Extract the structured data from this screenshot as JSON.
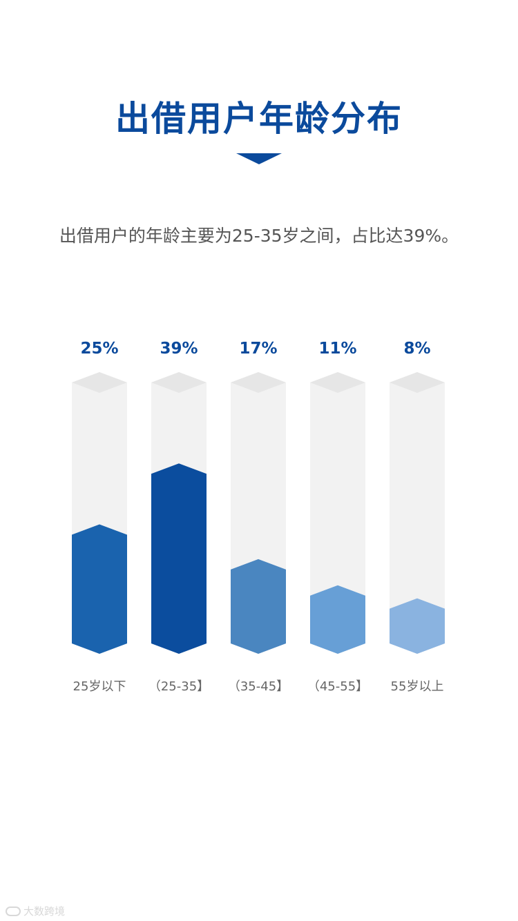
{
  "title": "出借用户年龄分布",
  "description": "出借用户的年龄主要为25-35岁之间，占比达39%。",
  "watermark": "大数跨境",
  "colors": {
    "title": "#0b4a9c",
    "track": "#f2f2f2",
    "track_cap": "#e6e6e6",
    "label_text": "#666666",
    "bars": [
      "#1a63ae",
      "#0b4d9e",
      "#4a86c0",
      "#679fd6",
      "#8ab3e0"
    ]
  },
  "chart_data": {
    "type": "bar",
    "categories": [
      "25岁以下",
      "（25-35】",
      "（35-45】",
      "（45-55】",
      "55岁以上"
    ],
    "values": [
      25,
      39,
      17,
      11,
      8
    ],
    "value_labels": [
      "25%",
      "39%",
      "17%",
      "11%",
      "8%"
    ],
    "unit": "%",
    "ylim": [
      0,
      60
    ],
    "grid": false,
    "legend": "none"
  }
}
